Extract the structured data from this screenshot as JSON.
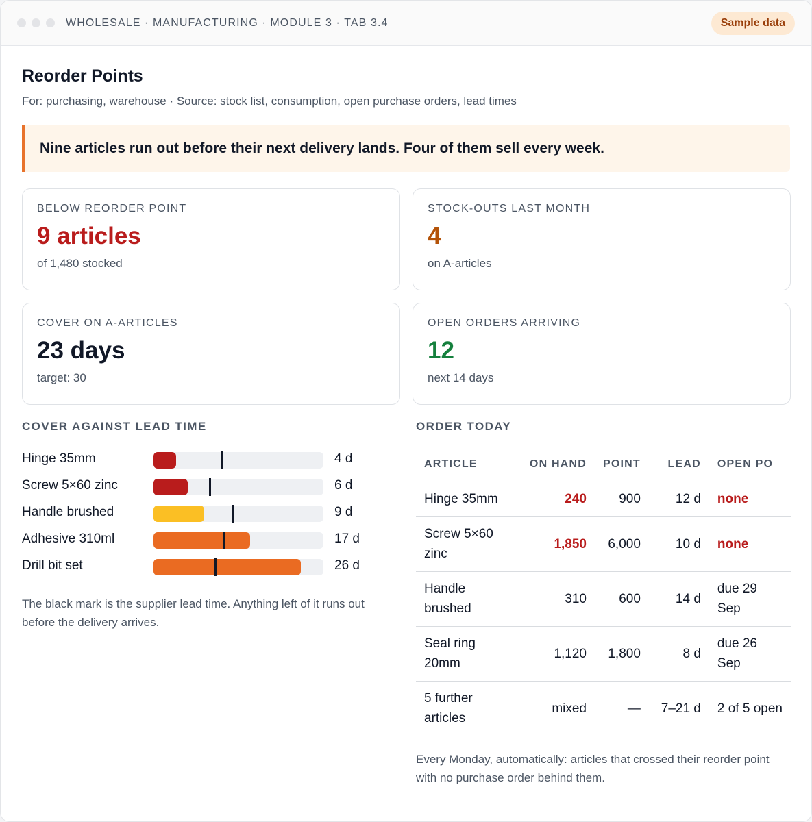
{
  "window": {
    "breadcrumb": "WHOLESALE · MANUFACTURING · MODULE 3 · TAB 3.4",
    "badge": "Sample data"
  },
  "page": {
    "title": "Reorder Points",
    "subtitle": "For: purchasing, warehouse · Source: stock list, consumption, open purchase orders, lead times",
    "headline": "Nine articles run out before their next delivery lands. Four of them sell every week."
  },
  "kpis": [
    {
      "label": "BELOW REORDER POINT",
      "value": "9 articles",
      "sub": "of 1,480 stocked",
      "color": "#b91c1c"
    },
    {
      "label": "STOCK-OUTS LAST MONTH",
      "value": "4",
      "sub": "on A-articles",
      "color": "#b45309"
    },
    {
      "label": "COVER ON A-ARTICLES",
      "value": "23 days",
      "sub": "target: 30",
      "color": "#111827"
    },
    {
      "label": "OPEN ORDERS ARRIVING",
      "value": "12",
      "sub": "next 14 days",
      "color": "#15803d"
    }
  ],
  "cover_chart": {
    "heading": "COVER AGAINST LEAD TIME",
    "axis_max_days": 30,
    "rows": [
      {
        "name": "Hinge 35mm",
        "cover_days": 4,
        "lead_days": 12,
        "value_label": "4 d",
        "color": "#b91c1c"
      },
      {
        "name": "Screw 5×60 zinc",
        "cover_days": 6,
        "lead_days": 10,
        "value_label": "6 d",
        "color": "#b91c1c"
      },
      {
        "name": "Handle brushed",
        "cover_days": 9,
        "lead_days": 14,
        "value_label": "9 d",
        "color": "#fbbf24"
      },
      {
        "name": "Adhesive 310ml",
        "cover_days": 17,
        "lead_days": 12.5,
        "value_label": "17 d",
        "color": "#ea6b22"
      },
      {
        "name": "Drill bit set",
        "cover_days": 26,
        "lead_days": 11,
        "value_label": "26 d",
        "color": "#ea6b22"
      }
    ],
    "note": "The black mark is the supplier lead time. Anything left of it runs out before the delivery arrives."
  },
  "order_table": {
    "heading": "ORDER TODAY",
    "columns": [
      "ARTICLE",
      "ON HAND",
      "POINT",
      "LEAD",
      "OPEN PO"
    ],
    "rows": [
      {
        "article": "Hinge 35mm",
        "on_hand": "240",
        "point": "900",
        "lead": "12 d",
        "open_po": "none",
        "alert": true
      },
      {
        "article": "Screw 5×60 zinc",
        "on_hand": "1,850",
        "point": "6,000",
        "lead": "10 d",
        "open_po": "none",
        "alert": true
      },
      {
        "article": "Handle brushed",
        "on_hand": "310",
        "point": "600",
        "lead": "14 d",
        "open_po": "due 29 Sep",
        "alert": false
      },
      {
        "article": "Seal ring 20mm",
        "on_hand": "1,120",
        "point": "1,800",
        "lead": "8 d",
        "open_po": "due 26 Sep",
        "alert": false
      },
      {
        "article": "5 further articles",
        "on_hand": "mixed",
        "point": "—",
        "lead": "7–21 d",
        "open_po": "2 of 5 open",
        "alert": false
      }
    ],
    "footnote": "Every Monday, automatically: articles that crossed their reorder point with no purchase order behind them."
  }
}
